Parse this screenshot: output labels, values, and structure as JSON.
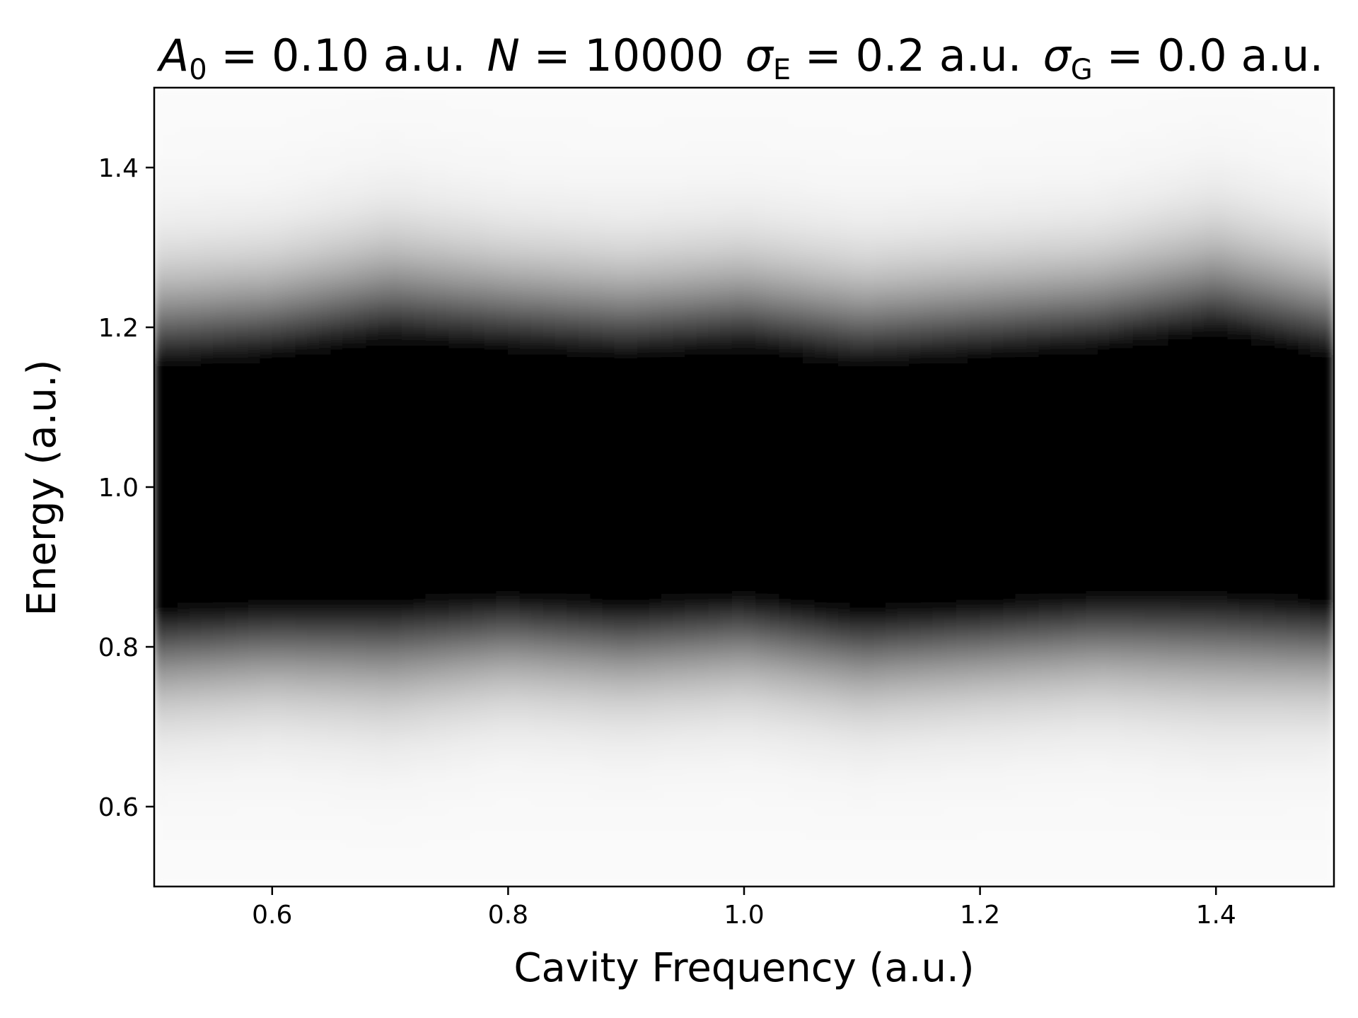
{
  "chart_data": {
    "type": "heatmap",
    "title": {
      "a_symbol": "A",
      "a_sub": "0",
      "a_value": " = 0.10 a.u.",
      "n_symbol": "N",
      "n_value": " = 10000",
      "sigma_symbol": "σ",
      "sigma_e_sub": "E",
      "sigma_e_value": " = 0.2 a.u.",
      "sigma_g_sub": "G",
      "sigma_g_value": " = 0.0 a.u."
    },
    "xlabel": "Cavity Frequency (a.u.)",
    "ylabel": "Energy (a.u.)",
    "xlim": [
      0.5,
      1.5
    ],
    "ylim": [
      0.5,
      1.5
    ],
    "xticks": [
      0.6,
      0.8,
      1.0,
      1.2,
      1.4
    ],
    "xtick_labels": [
      "0.6",
      "0.8",
      "1.0",
      "1.2",
      "1.4"
    ],
    "yticks": [
      0.6,
      0.8,
      1.0,
      1.2,
      1.4
    ],
    "ytick_labels": [
      "0.6",
      "0.8",
      "1.0",
      "1.2",
      "1.4"
    ],
    "colormap": "gray_r",
    "grid": false,
    "columns_x": [
      0.5,
      0.6,
      0.7,
      0.8,
      0.9,
      1.0,
      1.1,
      1.2,
      1.3,
      1.4,
      1.5
    ],
    "band_center_energy": [
      1.0,
      1.01,
      1.02,
      1.02,
      1.01,
      1.02,
      1.0,
      1.01,
      1.02,
      1.03,
      1.01
    ],
    "band_width_energy": [
      0.15,
      0.15,
      0.16,
      0.15,
      0.15,
      0.15,
      0.15,
      0.15,
      0.15,
      0.16,
      0.15
    ]
  }
}
